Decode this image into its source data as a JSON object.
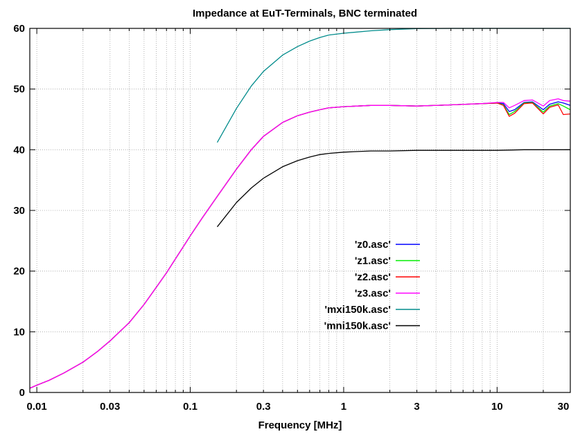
{
  "chart_data": {
    "type": "line",
    "title": "Impedance at EuT-Terminals, BNC terminated",
    "xlabel": "Frequency [MHz]",
    "ylabel": "",
    "xscale": "log",
    "xlim": [
      0.009,
      30
    ],
    "ylim": [
      0,
      60
    ],
    "x_ticks": [
      0.01,
      0.03,
      0.1,
      0.3,
      1,
      3,
      10,
      30
    ],
    "x_tick_labels": [
      "0.01",
      "0.03",
      "0.1",
      "0.3",
      "1",
      "3",
      "10",
      "30"
    ],
    "y_ticks": [
      0,
      10,
      20,
      30,
      40,
      50,
      60
    ],
    "y_tick_labels": [
      "0",
      "10",
      "20",
      "30",
      "40",
      "50",
      "60"
    ],
    "grid": true,
    "legend_position": "center-right",
    "series": [
      {
        "name": "'z0.asc'",
        "color": "#0000ff",
        "x": [
          0.009,
          0.01,
          0.012,
          0.015,
          0.02,
          0.025,
          0.03,
          0.04,
          0.05,
          0.06,
          0.07,
          0.08,
          0.09,
          0.1,
          0.12,
          0.15,
          0.2,
          0.25,
          0.3,
          0.4,
          0.5,
          0.6,
          0.7,
          0.8,
          1,
          1.5,
          2,
          3,
          5,
          8,
          10,
          11,
          12,
          13,
          15,
          17,
          20,
          22,
          25,
          27,
          30
        ],
        "y": [
          0.7,
          1.2,
          2,
          3.2,
          5,
          6.8,
          8.5,
          11.5,
          14.5,
          17.3,
          19.7,
          22,
          24,
          25.8,
          28.8,
          32.3,
          36.8,
          40,
          42.2,
          44.5,
          45.6,
          46.2,
          46.6,
          46.9,
          47.1,
          47.3,
          47.3,
          47.2,
          47.4,
          47.6,
          47.7,
          47.6,
          46.3,
          46.6,
          47.8,
          47.9,
          46.6,
          47.5,
          47.9,
          47.7,
          47.3
        ]
      },
      {
        "name": "'z1.asc'",
        "color": "#00ee00",
        "x": [
          0.009,
          0.01,
          0.012,
          0.015,
          0.02,
          0.025,
          0.03,
          0.04,
          0.05,
          0.06,
          0.07,
          0.08,
          0.09,
          0.1,
          0.12,
          0.15,
          0.2,
          0.25,
          0.3,
          0.4,
          0.5,
          0.6,
          0.7,
          0.8,
          1,
          1.5,
          2,
          3,
          5,
          8,
          10,
          11,
          12,
          13,
          15,
          17,
          20,
          22,
          25,
          27,
          30
        ],
        "y": [
          0.7,
          1.2,
          2,
          3.2,
          5,
          6.8,
          8.5,
          11.5,
          14.5,
          17.3,
          19.7,
          22,
          24,
          25.8,
          28.8,
          32.3,
          36.8,
          40,
          42.2,
          44.5,
          45.6,
          46.2,
          46.6,
          46.9,
          47.1,
          47.3,
          47.3,
          47.2,
          47.4,
          47.6,
          47.7,
          47.4,
          45.8,
          46.3,
          47.7,
          47.8,
          46.2,
          47.2,
          47.6,
          47.2,
          46.6
        ]
      },
      {
        "name": "'z2.asc'",
        "color": "#ff0000",
        "x": [
          0.009,
          0.01,
          0.012,
          0.015,
          0.02,
          0.025,
          0.03,
          0.04,
          0.05,
          0.06,
          0.07,
          0.08,
          0.09,
          0.1,
          0.12,
          0.15,
          0.2,
          0.25,
          0.3,
          0.4,
          0.5,
          0.6,
          0.7,
          0.8,
          1,
          1.5,
          2,
          3,
          5,
          8,
          10,
          11,
          12,
          13,
          15,
          17,
          20,
          22,
          25,
          27,
          30
        ],
        "y": [
          0.7,
          1.2,
          2,
          3.2,
          5,
          6.8,
          8.5,
          11.5,
          14.5,
          17.3,
          19.7,
          22,
          24,
          25.8,
          28.8,
          32.3,
          36.8,
          40,
          42.2,
          44.5,
          45.6,
          46.2,
          46.6,
          46.9,
          47.1,
          47.3,
          47.3,
          47.2,
          47.4,
          47.6,
          47.7,
          47.3,
          45.5,
          46.0,
          47.6,
          47.7,
          45.9,
          47.0,
          47.4,
          45.8,
          45.9
        ]
      },
      {
        "name": "'z3.asc'",
        "color": "#ff00ff",
        "x": [
          0.009,
          0.01,
          0.012,
          0.015,
          0.02,
          0.025,
          0.03,
          0.04,
          0.05,
          0.06,
          0.07,
          0.08,
          0.09,
          0.1,
          0.12,
          0.15,
          0.2,
          0.25,
          0.3,
          0.4,
          0.5,
          0.6,
          0.7,
          0.8,
          1,
          1.5,
          2,
          3,
          5,
          8,
          10,
          11,
          12,
          13,
          15,
          17,
          20,
          22,
          25,
          27,
          30
        ],
        "y": [
          0.7,
          1.2,
          2,
          3.2,
          5,
          6.8,
          8.5,
          11.5,
          14.5,
          17.3,
          19.7,
          22,
          24,
          25.8,
          28.8,
          32.3,
          36.8,
          40,
          42.2,
          44.5,
          45.6,
          46.2,
          46.6,
          46.9,
          47.1,
          47.3,
          47.3,
          47.2,
          47.4,
          47.6,
          47.8,
          47.8,
          46.9,
          47.3,
          48.1,
          48.2,
          47.2,
          48.1,
          48.4,
          48.1,
          48.0
        ]
      },
      {
        "name": "'mxi150k.asc'",
        "color": "#008b8b",
        "x": [
          0.15,
          0.2,
          0.25,
          0.3,
          0.4,
          0.5,
          0.6,
          0.7,
          0.8,
          1,
          1.5,
          2,
          3,
          5,
          10,
          20,
          30
        ],
        "y": [
          41.2,
          46.8,
          50.5,
          52.9,
          55.6,
          57.0,
          57.9,
          58.5,
          58.9,
          59.2,
          59.6,
          59.8,
          59.95,
          60,
          60,
          60,
          60
        ]
      },
      {
        "name": "'mni150k.asc'",
        "color": "#000000",
        "x": [
          0.15,
          0.2,
          0.25,
          0.3,
          0.4,
          0.5,
          0.6,
          0.7,
          0.8,
          1,
          1.5,
          2,
          3,
          5,
          10,
          15,
          20,
          30
        ],
        "y": [
          27.3,
          31.3,
          33.7,
          35.3,
          37.2,
          38.2,
          38.8,
          39.2,
          39.4,
          39.6,
          39.8,
          39.8,
          39.9,
          39.9,
          39.9,
          40.0,
          40.0,
          40.0
        ]
      }
    ]
  }
}
